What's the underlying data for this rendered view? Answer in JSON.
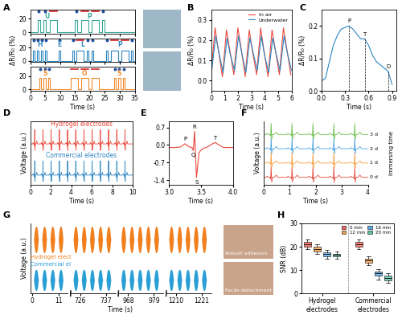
{
  "chart_data": [
    {
      "panel": "A",
      "type": "line",
      "xlabel": "Time (s)",
      "ylabel": "ΔR/R₀ (%)",
      "xlim": [
        0,
        35
      ],
      "xticks": [
        0,
        5,
        10,
        15,
        20,
        25,
        30,
        35
      ],
      "ylim": [
        -2,
        34
      ],
      "yticks": [
        0,
        20
      ],
      "baseline": 0,
      "dot_color": "#1f4e9c",
      "dash_color": "#d62728",
      "rows": [
        {
          "color": "#3aa89a",
          "peak": 18,
          "pulses": [
            [
              2.5,
              3.3
            ],
            [
              4.5,
              5.3
            ],
            [
              6.5,
              9.0
            ],
            [
              15,
              15.8
            ],
            [
              17,
              19.5
            ],
            [
              20.5,
              23
            ],
            [
              24,
              24.8
            ]
          ],
          "letters": [
            {
              "text": "U",
              "x": 5.7
            },
            {
              "text": "P",
              "x": 19.9
            }
          ]
        },
        {
          "color": "#2e86c1",
          "peak": 16,
          "pulses": [
            [
              1,
              1.6
            ],
            [
              2.3,
              2.9
            ],
            [
              3.6,
              4.2
            ],
            [
              4.9,
              5.5
            ],
            [
              9.5,
              10.1
            ],
            [
              14,
              14.6
            ],
            [
              15.5,
              18
            ],
            [
              19,
              19.6
            ],
            [
              20.5,
              21.1
            ],
            [
              25.5,
              26.1
            ],
            [
              27,
              29.5
            ],
            [
              30.5,
              33
            ],
            [
              33.8,
              34.4
            ]
          ],
          "letters": [
            {
              "text": "H",
              "x": 3.3
            },
            {
              "text": "E",
              "x": 9.8
            },
            {
              "text": "L",
              "x": 17.5
            },
            {
              "text": "P",
              "x": 30
            }
          ]
        },
        {
          "color": "#f08c2e",
          "peak": 17,
          "pulses": [
            [
              3,
              3.7
            ],
            [
              4.5,
              5.2
            ],
            [
              6,
              6.7
            ],
            [
              13.5,
              16
            ],
            [
              17,
              19.5
            ],
            [
              20.5,
              23
            ],
            [
              28,
              28.7
            ],
            [
              29.5,
              30.2
            ],
            [
              31,
              31.7
            ]
          ],
          "letters": [
            {
              "text": "S",
              "x": 4.9
            },
            {
              "text": "O",
              "x": 18.2
            },
            {
              "text": "S",
              "x": 29.9
            }
          ]
        }
      ]
    },
    {
      "panel": "B",
      "type": "line",
      "xlabel": "Time (s)",
      "ylabel": "ΔR/R₀ (%)",
      "xlim": [
        0,
        6
      ],
      "xticks": [
        0,
        1,
        2,
        3,
        4,
        5,
        6
      ],
      "ylim": [
        -0.05,
        0.35
      ],
      "yticks": [
        0.0,
        0.1,
        0.2,
        0.3
      ],
      "legend": "upper right",
      "series": [
        {
          "name": "In air",
          "color": "#e8483c",
          "x": [
            0.0,
            0.3,
            0.5,
            0.85,
            1.15,
            1.35,
            1.7,
            2.0,
            2.2,
            2.55,
            2.85,
            3.05,
            3.4,
            3.7,
            3.9,
            4.25,
            4.55,
            4.75,
            5.1,
            5.4,
            5.6,
            5.95
          ],
          "values": [
            0.03,
            0.26,
            0.17,
            0.02,
            0.25,
            0.17,
            0.03,
            0.26,
            0.18,
            0.02,
            0.25,
            0.16,
            0.03,
            0.26,
            0.17,
            0.02,
            0.25,
            0.17,
            0.03,
            0.26,
            0.18,
            0.03
          ]
        },
        {
          "name": "Underwater",
          "color": "#2e86c1",
          "x": [
            0.05,
            0.35,
            0.55,
            0.9,
            1.2,
            1.4,
            1.75,
            2.05,
            2.25,
            2.6,
            2.9,
            3.1,
            3.45,
            3.75,
            3.95,
            4.3,
            4.6,
            4.8,
            5.15,
            5.45,
            5.65,
            6.0
          ],
          "values": [
            0.05,
            0.22,
            0.15,
            0.04,
            0.21,
            0.14,
            0.05,
            0.22,
            0.15,
            0.04,
            0.21,
            0.15,
            0.05,
            0.22,
            0.14,
            0.04,
            0.21,
            0.15,
            0.05,
            0.22,
            0.15,
            0.05
          ]
        }
      ]
    },
    {
      "panel": "C",
      "type": "line",
      "xlabel": "Time (s)",
      "ylabel": "ΔR/R₀ (%)",
      "xlim": [
        0,
        0.95
      ],
      "xticks": [
        0.0,
        0.3,
        0.6,
        0.9
      ],
      "ylim": [
        0,
        0.25
      ],
      "yticks": [
        0.0,
        0.1,
        0.2
      ],
      "color": "#2e86c1",
      "x": [
        0,
        0.05,
        0.1,
        0.15,
        0.2,
        0.25,
        0.3,
        0.35,
        0.4,
        0.45,
        0.5,
        0.55,
        0.6,
        0.65,
        0.7,
        0.75,
        0.8,
        0.85,
        0.9
      ],
      "values": [
        0.03,
        0.04,
        0.09,
        0.14,
        0.17,
        0.19,
        0.195,
        0.2,
        0.19,
        0.175,
        0.16,
        0.16,
        0.14,
        0.11,
        0.09,
        0.08,
        0.07,
        0.06,
        0.02
      ],
      "annotations": [
        {
          "text": "P",
          "x": 0.35,
          "y": 0.2
        },
        {
          "text": "T",
          "x": 0.55,
          "y": 0.16
        },
        {
          "text": "D",
          "x": 0.85,
          "y": 0.06
        }
      ]
    },
    {
      "panel": "D",
      "type": "line",
      "xlabel": "Time (s)",
      "ylabel": "Voltage (a.u.)",
      "xlim": [
        0,
        10
      ],
      "xticks": [
        0,
        2,
        4,
        6,
        8,
        10
      ],
      "tick_labels": "x",
      "beat": {
        "t": [
          -0.2,
          -0.15,
          -0.1,
          -0.05,
          -0.02,
          0.0,
          0.02,
          0.05,
          0.12,
          0.2,
          0.26,
          0.32
        ],
        "v": [
          0,
          0.1,
          0,
          0,
          -0.15,
          1.0,
          -0.45,
          0,
          0,
          0.2,
          0,
          0
        ]
      },
      "series": [
        {
          "name": "Hydrogel electrodes",
          "color": "#e8483c",
          "beats": [
            0.45,
            1.25,
            2.05,
            2.85,
            3.65,
            4.45,
            5.25,
            6.05,
            6.85,
            7.65,
            8.45,
            9.25
          ]
        },
        {
          "name": "Commercial electrodes",
          "color": "#2e86c1",
          "beats": [
            0.45,
            1.25,
            2.05,
            2.85,
            3.65,
            4.45,
            5.25,
            6.05,
            6.85,
            7.65,
            8.45,
            9.25
          ]
        }
      ]
    },
    {
      "panel": "E",
      "type": "line",
      "xlabel": "Time (s)",
      "xlim": [
        3.0,
        4.0
      ],
      "xticks": [
        3.0,
        3.5,
        4.0
      ],
      "ylim": [
        -1.6,
        0.95
      ],
      "yticks": [
        -1.4,
        -0.7,
        0.0,
        0.7
      ],
      "color": "#e8483c",
      "x": [
        3.0,
        3.1,
        3.18,
        3.25,
        3.32,
        3.36,
        3.38,
        3.4,
        3.43,
        3.47,
        3.52,
        3.6,
        3.68,
        3.72,
        3.78,
        3.85,
        3.92,
        4.0
      ],
      "values": [
        -0.1,
        -0.1,
        -0.08,
        0.05,
        -0.08,
        -0.1,
        -0.22,
        0.55,
        -1.3,
        -0.3,
        -0.15,
        -0.08,
        0.05,
        0.1,
        0.0,
        -0.1,
        -0.1,
        -0.1
      ],
      "annotations": [
        {
          "text": "P",
          "x": 3.25,
          "y": 0.05
        },
        {
          "text": "Q",
          "x": 3.38,
          "y": -0.22
        },
        {
          "text": "R",
          "x": 3.4,
          "y": 0.55
        },
        {
          "text": "S",
          "x": 3.43,
          "y": -1.3
        },
        {
          "text": "T",
          "x": 3.72,
          "y": 0.1
        }
      ]
    },
    {
      "panel": "F",
      "type": "line",
      "xlabel": "Time (s)",
      "ylabel": "Voltage (a.u.)",
      "axis_note": "Immersing time",
      "xlim": [
        0,
        4
      ],
      "xticks": [
        0,
        1,
        2,
        3,
        4
      ],
      "tick_labels": "x",
      "beat": {
        "t": [
          -0.2,
          -0.15,
          -0.1,
          -0.05,
          -0.02,
          0.0,
          0.02,
          0.05,
          0.12,
          0.2,
          0.26,
          0.32
        ],
        "v": [
          0,
          0.1,
          0,
          0,
          -0.15,
          1.0,
          -0.45,
          0,
          0,
          0.2,
          0,
          0
        ]
      },
      "series": [
        {
          "name": "0 d",
          "color": "#e8483c",
          "beats": [
            0.3,
            1.1,
            1.9,
            2.7,
            3.5
          ]
        },
        {
          "name": "1 d",
          "color": "#f5a142",
          "beats": [
            0.3,
            1.1,
            1.9,
            2.7,
            3.5
          ]
        },
        {
          "name": "2 d",
          "color": "#4aa3df",
          "beats": [
            0.3,
            1.1,
            1.9,
            2.7,
            3.5
          ]
        },
        {
          "name": "3 d",
          "color": "#6abf4b",
          "beats": [
            0.3,
            1.1,
            1.9,
            2.7,
            3.5
          ]
        }
      ]
    },
    {
      "panel": "G",
      "type": "area",
      "xlabel": "Time (s)",
      "ylabel": "Voltage (a.u.)",
      "tick_labels": "x",
      "photo_captions": [
        "Robust adhesion",
        "Facile detachment"
      ],
      "segments": [
        {
          "xlim": [
            -1,
            15
          ],
          "xticks": [
            0,
            11
          ],
          "bursts": [
            [
              0.5,
              2.5
            ],
            [
              4,
              6
            ],
            [
              7.5,
              9.5
            ],
            [
              11,
              13
            ]
          ]
        },
        {
          "xlim": [
            722,
            741
          ],
          "xticks": [
            726,
            737
          ],
          "bursts": [
            [
              723,
              725
            ],
            [
              726.5,
              728.5
            ],
            [
              730,
              732
            ],
            [
              733.5,
              735.5
            ],
            [
              737,
              739
            ]
          ]
        },
        {
          "xlim": [
            964,
            983
          ],
          "xticks": [
            968,
            979
          ],
          "bursts": [
            [
              965,
              967
            ],
            [
              968.5,
              970.5
            ],
            [
              972,
              974
            ],
            [
              975.5,
              977.5
            ],
            [
              979,
              981
            ]
          ]
        },
        {
          "xlim": [
            1206,
            1225
          ],
          "xticks": [
            1210,
            1221
          ],
          "bursts": [
            [
              1207,
              1209
            ],
            [
              1210.5,
              1212.5
            ],
            [
              1214,
              1216
            ],
            [
              1217.5,
              1219.5
            ],
            [
              1221,
              1223
            ]
          ]
        }
      ],
      "series": [
        {
          "name": "Hydrogel electrodes",
          "color": "#f07f1e",
          "amplitude": 1.0
        },
        {
          "name": "Commercial electrodes",
          "color": "#2a9fd6",
          "amplitude": 0.8
        }
      ]
    },
    {
      "panel": "H",
      "type": "box",
      "ylabel": "SNR (dB)",
      "ylim": [
        0,
        30
      ],
      "yticks": [
        0,
        10,
        20,
        30
      ],
      "legend": "upper right",
      "categories": [
        "Hydrogel electrodes",
        "Commercial electrodes"
      ],
      "series": [
        {
          "name": "0 min",
          "color": "#f4665a",
          "stats": [
            [
              19,
              20,
              21,
              22,
              23
            ],
            [
              19,
              20,
              21,
              22,
              23
            ]
          ]
        },
        {
          "name": "12 min",
          "color": "#f7a24f",
          "stats": [
            [
              17,
              18,
              19,
              20,
              21
            ],
            [
              12,
              13,
              14,
              15,
              16
            ]
          ]
        },
        {
          "name": "16 min",
          "color": "#5aa9e6",
          "stats": [
            [
              15,
              16,
              16.8,
              17.5,
              18.5
            ],
            [
              6,
              7.5,
              8.5,
              9.5,
              10.5
            ]
          ]
        },
        {
          "name": "20 min",
          "color": "#5cc3a8",
          "stats": [
            [
              15,
              16,
              16.5,
              17,
              18
            ],
            [
              4.5,
              5.5,
              6.5,
              7.5,
              8.5
            ]
          ]
        }
      ]
    }
  ]
}
